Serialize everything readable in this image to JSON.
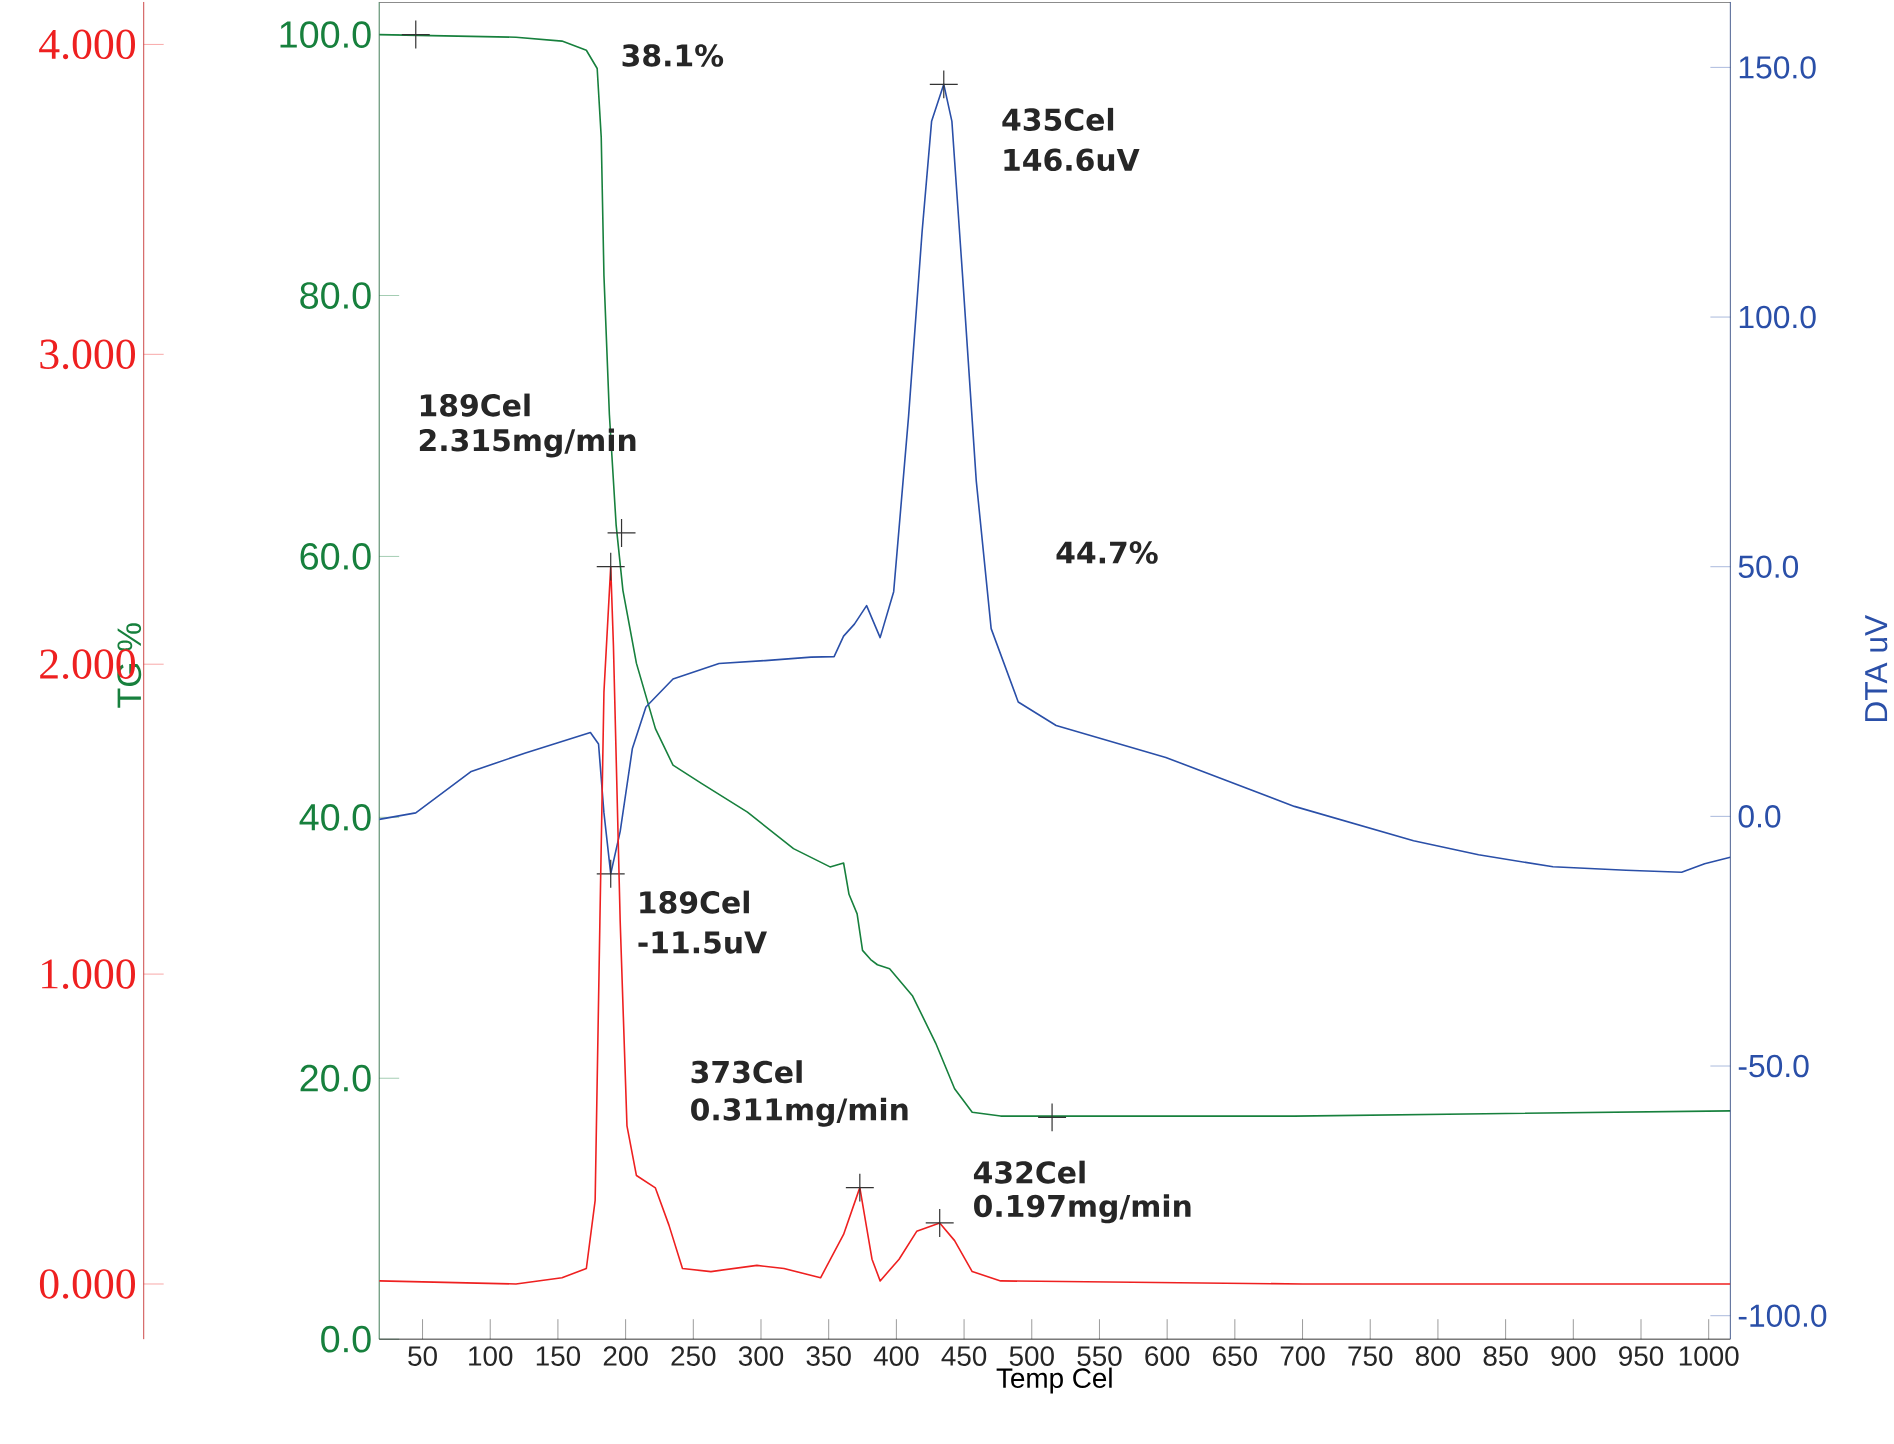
{
  "chart_data": {
    "type": "line",
    "xlabel": "Temp Cel",
    "ylabel": "TG %",
    "y2label": "DTA uV",
    "xlim": [
      18,
      1016
    ],
    "xticks": [
      50,
      100,
      150,
      200,
      250,
      300,
      350,
      400,
      450,
      500,
      550,
      600,
      650,
      700,
      750,
      800,
      850,
      900,
      950,
      1000
    ],
    "ylim": [
      0,
      102.5
    ],
    "yticks": [
      {
        "value": 0,
        "label": "0.0"
      },
      {
        "value": 20,
        "label": "20.0"
      },
      {
        "value": 40,
        "label": "40.0"
      },
      {
        "value": 60,
        "label": "60.0"
      },
      {
        "value": 80,
        "label": "80.0"
      },
      {
        "value": 100,
        "label": "100.0"
      }
    ],
    "y2lim": [
      -104.7,
      163.1
    ],
    "y2ticks": [
      {
        "value": -100,
        "label": "-100.0"
      },
      {
        "value": -50,
        "label": "-50.0"
      },
      {
        "value": 0,
        "label": "0.0"
      },
      {
        "value": 50,
        "label": "50.0"
      },
      {
        "value": 100,
        "label": "100.0"
      },
      {
        "value": 150,
        "label": "150.0"
      }
    ],
    "y3lim": [
      -0.178,
      4.137
    ],
    "y3ticks": [
      {
        "value": 0,
        "label": "0.000"
      },
      {
        "value": 1,
        "label": "1.000"
      },
      {
        "value": 2,
        "label": "2.000"
      },
      {
        "value": 3,
        "label": "3.000"
      },
      {
        "value": 4,
        "label": "4.000"
      }
    ],
    "annotations": [
      "38.1%",
      "435Cel",
      "146.6uV",
      "189Cel",
      "2.315mg/min",
      "44.7%",
      "189Cel",
      "-11.5uV",
      "373Cel",
      "0.311mg/min",
      "432Cel",
      "0.197mg/min"
    ],
    "series": [
      {
        "type": "line",
        "axis": "y",
        "color": "#17803d",
        "x": [
          18,
          119,
          153,
          171,
          179,
          182,
          184,
          188,
          193,
          198,
          208,
          222,
          235,
          256,
          290,
          324,
          351,
          361,
          365,
          371,
          375,
          381,
          386,
          395,
          412,
          429,
          443,
          456,
          477,
          694,
          850,
          1016
        ],
        "values": [
          100.0,
          99.8,
          99.5,
          98.8,
          97.4,
          92.1,
          81.5,
          70.9,
          62.4,
          57.4,
          51.8,
          46.8,
          44.0,
          42.6,
          40.4,
          37.6,
          36.2,
          36.5,
          34.1,
          32.6,
          29.8,
          29.1,
          28.7,
          28.4,
          26.3,
          22.7,
          19.2,
          17.4,
          17.1,
          17.1,
          17.3,
          17.5
        ]
      },
      {
        "type": "line",
        "axis": "y2",
        "color": "#2a4fa8",
        "x": [
          18,
          45,
          86,
          126,
          174,
          180,
          184,
          189,
          196,
          205,
          215,
          235,
          269,
          303,
          337,
          354,
          361,
          369,
          378,
          388,
          398,
          409,
          419,
          426,
          435,
          441,
          449,
          459,
          470,
          490,
          518,
          599,
          694,
          782,
          830,
          885,
          939,
          980,
          997,
          1016
        ],
        "values": [
          -0.6,
          0.7,
          9.0,
          12.7,
          16.8,
          14.5,
          0.7,
          -11.5,
          -3.0,
          13.6,
          21.9,
          27.5,
          30.6,
          31.2,
          31.9,
          32.0,
          36.1,
          38.5,
          42.2,
          35.8,
          45.0,
          80.1,
          117.1,
          139.2,
          146.6,
          139.2,
          107.8,
          67.2,
          37.6,
          22.9,
          18.2,
          11.8,
          2.0,
          -4.9,
          -7.7,
          -10.1,
          -10.8,
          -11.2,
          -9.5,
          -8.2
        ]
      },
      {
        "type": "line",
        "axis": "y3",
        "color": "#ee2020",
        "x": [
          18,
          119,
          153,
          171,
          177.5,
          181,
          184,
          189,
          191,
          196,
          201,
          208,
          222,
          232,
          242,
          263,
          297,
          317,
          344,
          361,
          373,
          382,
          388,
          402,
          415,
          432,
          443,
          456,
          477,
          700,
          1016
        ],
        "values": [
          0.01,
          0.0,
          0.02,
          0.05,
          0.27,
          1.17,
          1.91,
          2.315,
          2.06,
          1.17,
          0.51,
          0.35,
          0.31,
          0.19,
          0.05,
          0.04,
          0.06,
          0.05,
          0.02,
          0.16,
          0.311,
          0.08,
          0.01,
          0.08,
          0.17,
          0.197,
          0.14,
          0.04,
          0.01,
          0.0,
          0.0
        ]
      },
      {
        "type": "scatter",
        "axis": "y",
        "marker": "cross",
        "color": "#333333",
        "x": [
          45,
          197,
          515
        ],
        "values": [
          100.0,
          61.8,
          17.0
        ]
      },
      {
        "type": "scatter",
        "axis": "y2",
        "marker": "cross",
        "color": "#333333",
        "x": [
          435,
          189
        ],
        "values": [
          146.6,
          -11.5
        ]
      },
      {
        "type": "scatter",
        "axis": "y3",
        "marker": "cross",
        "color": "#333333",
        "x": [
          189,
          373,
          432
        ],
        "values": [
          2.315,
          0.311,
          0.197
        ]
      }
    ]
  }
}
